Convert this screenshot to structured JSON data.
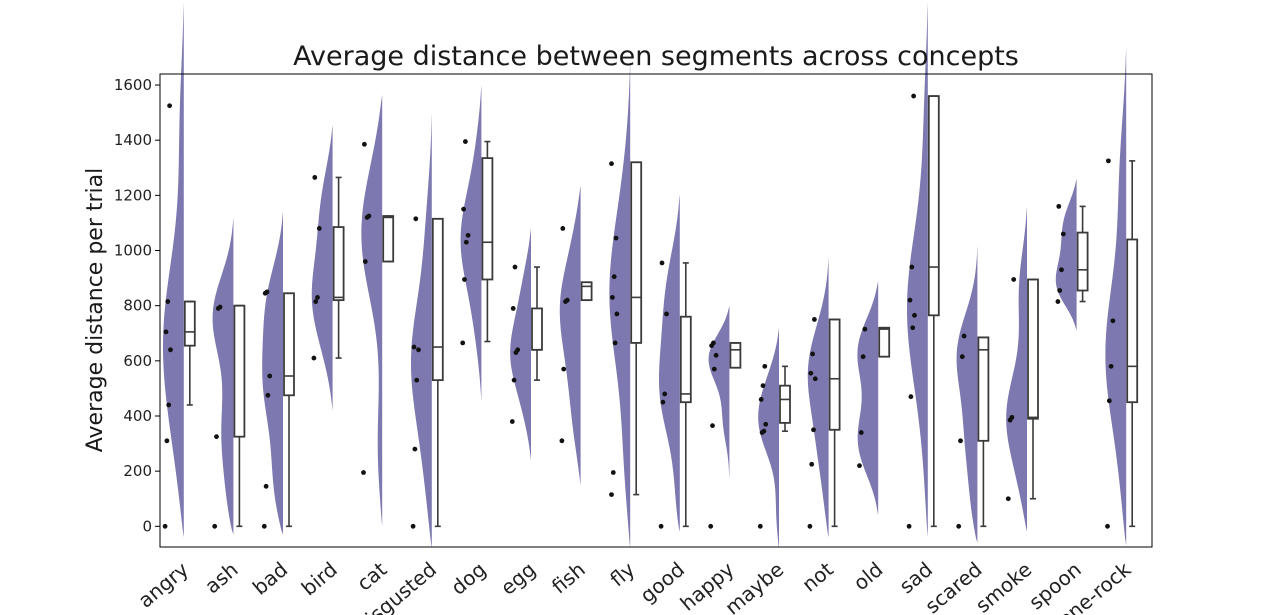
{
  "chart_data": {
    "type": "raincloud",
    "title": "Average distance between segments across concepts",
    "xlabel": "",
    "ylabel": "Average distance per trial",
    "ylim": [
      -75,
      1640
    ],
    "yticks": [
      0,
      200,
      400,
      600,
      800,
      1000,
      1200,
      1400,
      1600
    ],
    "grid": false,
    "colors": {
      "violin": "#7d79b0",
      "box": "#3a3a3a",
      "point": "#111111"
    },
    "categories": [
      "angry",
      "ash",
      "bad",
      "bird",
      "cat",
      "disgusted",
      "dog",
      "egg",
      "fish",
      "fly",
      "good",
      "happy",
      "maybe",
      "not",
      "old",
      "sad",
      "scared",
      "smoke",
      "spoon",
      "stone-rock"
    ],
    "groups": [
      {
        "box": [
          440,
          655,
          705,
          815,
          815
        ],
        "points": [
          0,
          310,
          440,
          640,
          705,
          815,
          1525
        ],
        "violin": [
          -40,
          1900
        ]
      },
      {
        "box": [
          0,
          325,
          800,
          800,
          800
        ],
        "points": [
          0,
          325,
          790,
          795
        ],
        "violin": [
          -30,
          1120
        ]
      },
      {
        "box": [
          0,
          475,
          545,
          845,
          845
        ],
        "points": [
          0,
          145,
          475,
          545,
          845,
          850
        ],
        "violin": [
          -30,
          1140
        ]
      },
      {
        "box": [
          610,
          820,
          830,
          1085,
          1265
        ],
        "points": [
          610,
          815,
          830,
          1080,
          1265
        ],
        "violin": [
          420,
          1455
        ]
      },
      {
        "box": [
          960,
          960,
          1120,
          1125,
          1125
        ],
        "points": [
          195,
          960,
          1120,
          1125,
          1385
        ],
        "violin": [
          0,
          1565
        ]
      },
      {
        "box": [
          0,
          530,
          650,
          1115,
          1115
        ],
        "points": [
          0,
          280,
          530,
          640,
          650,
          1115
        ],
        "violin": [
          -80,
          1500
        ]
      },
      {
        "box": [
          670,
          895,
          1030,
          1335,
          1395
        ],
        "points": [
          665,
          895,
          1030,
          1055,
          1150,
          1395
        ],
        "violin": [
          455,
          1600
        ]
      },
      {
        "box": [
          530,
          640,
          640,
          790,
          940
        ],
        "points": [
          380,
          530,
          630,
          640,
          790,
          940
        ],
        "violin": [
          240,
          1080
        ]
      },
      {
        "box": [
          820,
          820,
          870,
          885,
          885
        ],
        "points": [
          310,
          570,
          815,
          820,
          1080
        ],
        "violin": [
          150,
          1235
        ]
      },
      {
        "box": [
          115,
          665,
          830,
          1320,
          1320
        ],
        "points": [
          115,
          195,
          665,
          770,
          830,
          905,
          1045,
          1315
        ],
        "violin": [
          -80,
          1700
        ]
      },
      {
        "box": [
          0,
          450,
          480,
          760,
          955
        ],
        "points": [
          0,
          450,
          480,
          770,
          955
        ],
        "violin": [
          -20,
          1205
        ]
      },
      {
        "box": [
          575,
          575,
          640,
          665,
          665
        ],
        "points": [
          0,
          365,
          570,
          620,
          655,
          665
        ],
        "violin": [
          170,
          800
        ]
      },
      {
        "box": [
          345,
          375,
          460,
          510,
          580
        ],
        "points": [
          0,
          340,
          345,
          370,
          460,
          510,
          580
        ],
        "violin": [
          -80,
          720
        ]
      },
      {
        "box": [
          0,
          350,
          535,
          750,
          750
        ],
        "points": [
          0,
          225,
          350,
          535,
          555,
          625,
          750
        ],
        "violin": [
          -40,
          975
        ]
      },
      {
        "box": [
          615,
          615,
          715,
          720,
          720
        ],
        "points": [
          220,
          340,
          615,
          715
        ],
        "violin": [
          40,
          890
        ]
      },
      {
        "box": [
          0,
          765,
          940,
          1560,
          1560
        ],
        "points": [
          0,
          470,
          720,
          765,
          820,
          940,
          1560
        ],
        "violin": [
          -40,
          1900
        ]
      },
      {
        "box": [
          0,
          310,
          640,
          685,
          685
        ],
        "points": [
          0,
          310,
          615,
          690
        ],
        "violin": [
          -60,
          1020
        ]
      },
      {
        "box": [
          100,
          390,
          395,
          895,
          895
        ],
        "points": [
          100,
          385,
          395,
          895
        ],
        "violin": [
          -20,
          1160
        ]
      },
      {
        "box": [
          815,
          855,
          930,
          1065,
          1160
        ],
        "points": [
          815,
          855,
          930,
          1060,
          1160
        ],
        "violin": [
          710,
          1260
        ]
      },
      {
        "box": [
          0,
          450,
          580,
          1040,
          1325
        ],
        "points": [
          0,
          455,
          580,
          745,
          1325
        ],
        "violin": [
          -70,
          1740
        ]
      }
    ]
  }
}
